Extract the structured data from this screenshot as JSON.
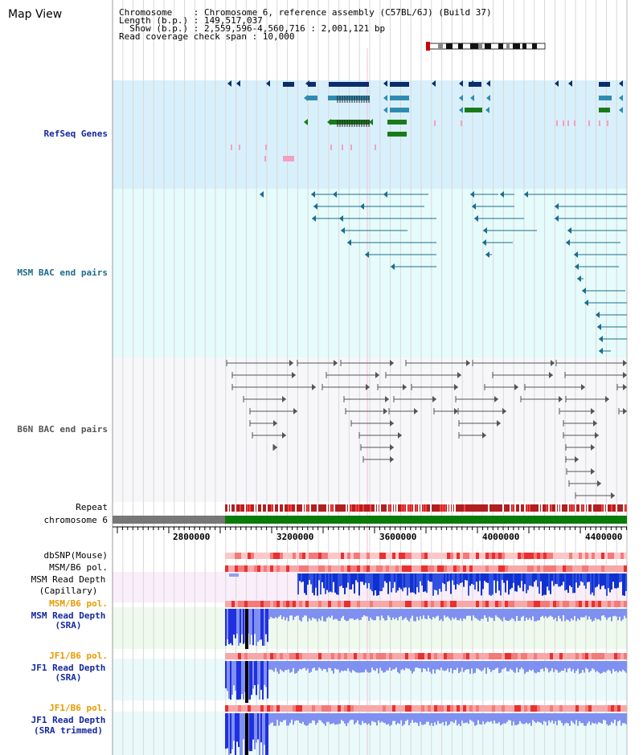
{
  "view": {
    "title": "Map View"
  },
  "header": {
    "line1": "Chromosome    : Chromosome 6, reference assembly (C57BL/6J) (Build 37)",
    "line2": "Length (b.p.) : 149,517,037",
    "line3": "  Show (b.p.) : 2,559,596-4,560,716 : 2,001,121 bp",
    "line4": "Read coverage check span : 10,000"
  },
  "tracks": {
    "refseq": "RefSeq Genes",
    "msm_bac": "MSM BAC end pairs",
    "b6n_bac": "B6N BAC end pairs",
    "repeat": "Repeat",
    "chromosome": "chromosome 6",
    "dbsnp": "dbSNP(Mouse)",
    "msm_b6_pol_1": "MSM/B6 pol.",
    "msm_read_depth_cap_1": "MSM Read Depth",
    "msm_read_depth_cap_2": "(Capillary)",
    "msm_b6_pol_2": "MSM/B6 pol.",
    "msm_read_depth_sra_1": "MSM Read Depth",
    "msm_read_depth_sra_2": "(SRA)",
    "jf1_b6_pol_1": "JF1/B6 pol.",
    "jf1_read_depth_sra_1": "JF1 Read Depth",
    "jf1_read_depth_sra_2": "(SRA)",
    "jf1_b6_pol_2": "JF1/B6 pol.",
    "jf1_read_depth_trim_1": "JF1 Read Depth",
    "jf1_read_depth_trim_2": "(SRA trimmed)"
  },
  "axis": {
    "ticks": [
      "2800000",
      "3200000",
      "3600000",
      "4000000",
      "4400000"
    ]
  },
  "colors": {
    "navy": "#0c2d6b",
    "teal": "#2f8bb0",
    "green": "#1a7a1a",
    "pink": "#f4a0c0",
    "bac_blue": "#1c6c8c",
    "b6n_gray": "#555555",
    "label_blue": "#1428a0",
    "label_teal": "#1c6c8c",
    "label_gray": "#555555",
    "label_orange": "#e89a00",
    "depth_blue": "#2030e0",
    "depth_light": "#8090f0"
  }
}
